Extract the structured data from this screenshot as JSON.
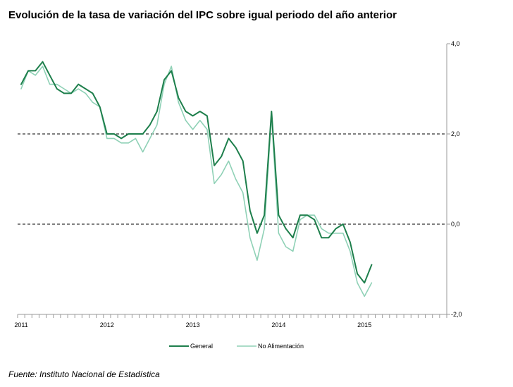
{
  "title": "Evolución de la tasa de variación del IPC sobre igual  periodo del año anterior",
  "source": "Fuente: Instituto Nacional de Estadística",
  "chart_data": {
    "type": "line",
    "xlabel": "",
    "ylabel": "",
    "ylim": [
      -2.0,
      4.0
    ],
    "yticks": [
      "4,0",
      "2,0",
      "0,0",
      "-2,0"
    ],
    "ytick_values": [
      4.0,
      2.0,
      0.0,
      -2.0
    ],
    "xticks": [
      "2011",
      "2012",
      "2013",
      "2014",
      "2015"
    ],
    "grid": "dashed lines at 2,0 and 0,0",
    "legend_position": "bottom",
    "series": [
      {
        "name": "General",
        "color": "#1e7f4c",
        "values": [
          3.1,
          3.4,
          3.4,
          3.6,
          3.3,
          3.0,
          2.9,
          2.9,
          3.1,
          3.0,
          2.9,
          2.6,
          2.0,
          2.0,
          1.9,
          2.0,
          2.0,
          2.0,
          2.2,
          2.5,
          3.2,
          3.4,
          2.8,
          2.5,
          2.4,
          2.5,
          2.4,
          1.3,
          1.5,
          1.9,
          1.7,
          1.4,
          0.3,
          -0.2,
          0.2,
          2.5,
          0.2,
          -0.1,
          -0.3,
          0.2,
          0.2,
          0.1,
          -0.3,
          -0.3,
          -0.1,
          0.0,
          -0.4,
          -1.1,
          -1.3,
          -0.9
        ]
      },
      {
        "name": "No Alimentación",
        "color": "#8fd1b6",
        "values": [
          3.0,
          3.4,
          3.3,
          3.5,
          3.1,
          3.1,
          3.0,
          2.9,
          3.0,
          2.9,
          2.7,
          2.6,
          1.9,
          1.9,
          1.8,
          1.8,
          1.9,
          1.6,
          1.9,
          2.2,
          3.1,
          3.5,
          2.7,
          2.3,
          2.1,
          2.3,
          2.1,
          0.9,
          1.1,
          1.4,
          1.0,
          0.7,
          -0.3,
          -0.8,
          -0.1,
          2.4,
          -0.2,
          -0.5,
          -0.6,
          0.1,
          0.2,
          0.2,
          -0.1,
          -0.2,
          -0.2,
          -0.2,
          -0.6,
          -1.3,
          -1.6,
          -1.3
        ]
      }
    ]
  }
}
